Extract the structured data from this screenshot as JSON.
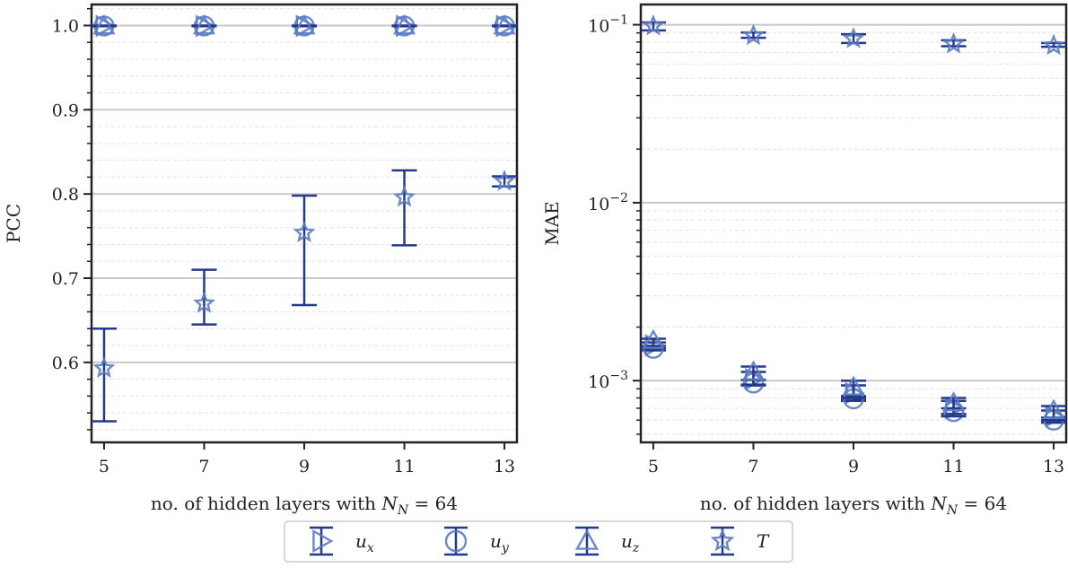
{
  "chart_data": [
    {
      "type": "scatter",
      "ylabel": "PCC",
      "xlabel": "no. of hidden layers with N_N = 64",
      "x": [
        5,
        7,
        9,
        11,
        13
      ],
      "x_tick_labels": [
        "5",
        "7",
        "9",
        "11",
        "13"
      ],
      "ylim": [
        0.505,
        1.025
      ],
      "y_tick_labels": [
        "0.6",
        "0.7",
        "0.8",
        "0.9",
        "1.0"
      ],
      "y_ticks": [
        0.6,
        0.7,
        0.8,
        0.9,
        1.0
      ],
      "grid": true,
      "series": [
        {
          "name": "u_x",
          "values": [
            0.9995,
            0.9995,
            0.9995,
            0.9995,
            0.9995
          ],
          "err_low": [
            0.9992,
            0.9992,
            0.9992,
            0.9992,
            0.9992
          ],
          "err_high": [
            0.9998,
            0.9998,
            0.9998,
            0.9998,
            0.9998
          ]
        },
        {
          "name": "u_y",
          "values": [
            0.9995,
            0.9995,
            0.9995,
            0.9995,
            0.9995
          ],
          "err_low": [
            0.9992,
            0.9992,
            0.9992,
            0.9992,
            0.9992
          ],
          "err_high": [
            0.9998,
            0.9998,
            0.9998,
            0.9998,
            0.9998
          ]
        },
        {
          "name": "u_z",
          "values": [
            0.9995,
            0.9995,
            0.9995,
            0.9995,
            0.9995
          ],
          "err_low": [
            0.9992,
            0.9992,
            0.9992,
            0.9992,
            0.9992
          ],
          "err_high": [
            0.9998,
            0.9998,
            0.9998,
            0.9998,
            0.9998
          ]
        },
        {
          "name": "T",
          "values": [
            0.593,
            0.67,
            0.754,
            0.796,
            0.815
          ],
          "err_low": [
            0.53,
            0.645,
            0.668,
            0.739,
            0.809
          ],
          "err_high": [
            0.64,
            0.71,
            0.798,
            0.828,
            0.821
          ]
        }
      ]
    },
    {
      "type": "scatter",
      "ylabel": "MAE",
      "xlabel": "no. of hidden layers with N_N = 64",
      "yscale": "log",
      "x": [
        5,
        7,
        9,
        11,
        13
      ],
      "x_tick_labels": [
        "5",
        "7",
        "9",
        "11",
        "13"
      ],
      "ylim": [
        0.00045,
        0.13
      ],
      "y_ticks": [
        0.001,
        0.01,
        0.1
      ],
      "y_tick_labels": [
        {
          "base": "10",
          "exp": "−3"
        },
        {
          "base": "10",
          "exp": "−2"
        },
        {
          "base": "10",
          "exp": "−1"
        }
      ],
      "grid": true,
      "series": [
        {
          "name": "u_x",
          "values": [
            0.00158,
            0.00102,
            0.00085,
            0.0007,
            0.00063
          ],
          "err_low": [
            0.00152,
            0.00094,
            0.00079,
            0.00065,
            0.00059
          ],
          "err_high": [
            0.00164,
            0.00112,
            0.00094,
            0.00077,
            0.00068
          ]
        },
        {
          "name": "u_y",
          "values": [
            0.00152,
            0.00097,
            0.00079,
            0.00067,
            0.0006
          ],
          "err_low": [
            0.00148,
            0.00094,
            0.00077,
            0.00065,
            0.00058
          ],
          "err_high": [
            0.00157,
            0.00101,
            0.00082,
            0.0007,
            0.00062
          ]
        },
        {
          "name": "u_z",
          "values": [
            0.00168,
            0.00112,
            0.00092,
            0.00075,
            0.00068
          ],
          "err_low": [
            0.00152,
            0.00095,
            0.0008,
            0.00063,
            0.0006
          ],
          "err_high": [
            0.00172,
            0.0012,
            0.001,
            0.0008,
            0.00072
          ]
        },
        {
          "name": "T",
          "values": [
            0.0985,
            0.087,
            0.0835,
            0.078,
            0.0765
          ],
          "err_low": [
            0.093,
            0.0845,
            0.079,
            0.0758,
            0.0752
          ],
          "err_high": [
            0.103,
            0.0905,
            0.0885,
            0.0818,
            0.079
          ]
        }
      ]
    }
  ],
  "legend": {
    "placement": "bottom-center",
    "entries": [
      {
        "label": "u",
        "sub": "x",
        "marker": "triangle-right"
      },
      {
        "label": "u",
        "sub": "y",
        "marker": "circle"
      },
      {
        "label": "u",
        "sub": "z",
        "marker": "triangle-up"
      },
      {
        "label": "T",
        "sub": "",
        "marker": "star"
      }
    ]
  },
  "colors": {
    "marker": "#5b7cc2",
    "errorbar": "#24398c",
    "grid_major": "#c8c8c8",
    "grid_minor": "#e4e4e4",
    "axes": "#222222"
  }
}
